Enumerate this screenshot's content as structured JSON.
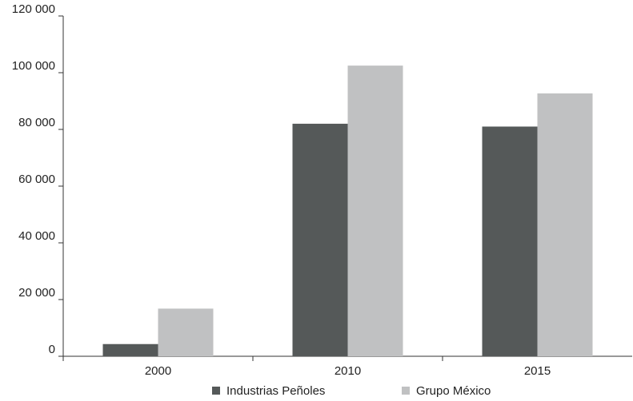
{
  "chart_data": {
    "type": "bar",
    "categories": [
      "2000",
      "2010",
      "2015"
    ],
    "series": [
      {
        "name": "Industrias Peñoles",
        "values": [
          4300,
          82000,
          81000
        ],
        "color": "#555959"
      },
      {
        "name": "Grupo México",
        "values": [
          16800,
          102500,
          92700
        ],
        "color": "#c0c1c2"
      }
    ],
    "ylim": [
      0,
      120000
    ],
    "yticks": [
      0,
      20000,
      40000,
      60000,
      80000,
      100000,
      120000
    ],
    "ytick_labels": [
      "0",
      "20 000",
      "40 000",
      "60 000",
      "80 000",
      "100 000",
      "120 000"
    ],
    "grid": false,
    "legend_position": "bottom",
    "axis_color": "#333333"
  }
}
